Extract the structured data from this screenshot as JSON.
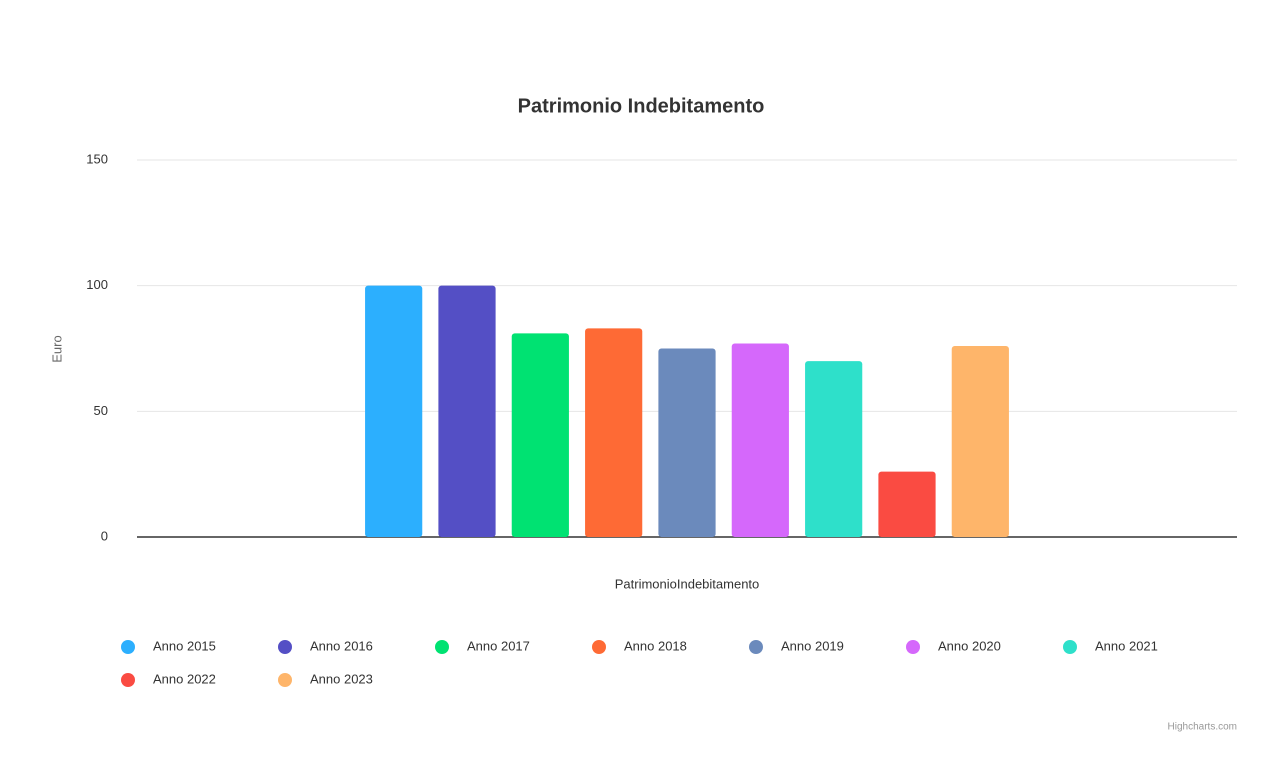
{
  "chart_data": {
    "type": "bar",
    "title": "Patrimonio Indebitamento",
    "y_axis_label": "Euro",
    "x_axis_label": "PatrimonioIndebitamento",
    "categories": [
      "PatrimonioIndebitamento"
    ],
    "series": [
      {
        "name": "Anno 2015",
        "color": "#2caffe",
        "values": [
          100
        ]
      },
      {
        "name": "Anno 2016",
        "color": "#544fc5",
        "values": [
          100
        ]
      },
      {
        "name": "Anno 2017",
        "color": "#00e272",
        "values": [
          81
        ]
      },
      {
        "name": "Anno 2018",
        "color": "#fe6a35",
        "values": [
          83
        ]
      },
      {
        "name": "Anno 2019",
        "color": "#6b8abc",
        "values": [
          75
        ]
      },
      {
        "name": "Anno 2020",
        "color": "#d568fb",
        "values": [
          77
        ]
      },
      {
        "name": "Anno 2021",
        "color": "#2ee0ca",
        "values": [
          70
        ]
      },
      {
        "name": "Anno 2022",
        "color": "#fa4b42",
        "values": [
          26
        ]
      },
      {
        "name": "Anno 2023",
        "color": "#feb56a",
        "values": [
          76
        ]
      }
    ],
    "ylim": [
      0,
      150
    ],
    "yticks": [
      0,
      50,
      100,
      150
    ],
    "grid": true,
    "legend": "bottom",
    "credits": "Highcharts.com"
  }
}
